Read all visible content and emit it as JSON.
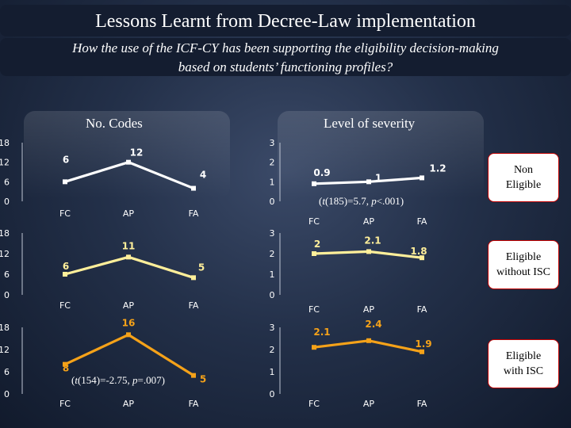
{
  "header": {
    "title": "Lessons Learnt from Decree-Law implementation",
    "subtitle_line1": "How the use of the ICF-CY has been supporting the eligibility decision-making",
    "subtitle_line2": "based on students’ functioning profiles?"
  },
  "left_heading": "No. Codes",
  "right_heading": "Level of severity",
  "row_labels": [
    {
      "line1": "Non",
      "line2": "Eligible"
    },
    {
      "line1": "Eligible",
      "line2": "without ISC"
    },
    {
      "line1": "Eligible",
      "line2": "with ISC"
    }
  ],
  "colors": {
    "row1": "#ffffff",
    "row2": "#ffef9a",
    "row3": "#f5a219"
  },
  "chart_data": [
    {
      "type": "line",
      "panel": "No. Codes",
      "group": "Non Eligible",
      "categories": [
        "FC",
        "AP",
        "FA"
      ],
      "values": [
        6,
        12,
        4
      ],
      "labels": [
        "6",
        "12",
        "4"
      ],
      "ylim": [
        0,
        18
      ],
      "yticks": [
        "0",
        "6",
        "12",
        "18"
      ],
      "stat": ""
    },
    {
      "type": "line",
      "panel": "No. Codes",
      "group": "Eligible without ISC",
      "categories": [
        "FC",
        "AP",
        "FA"
      ],
      "values": [
        6,
        11,
        5
      ],
      "labels": [
        "6",
        "11",
        "5"
      ],
      "ylim": [
        0,
        18
      ],
      "yticks": [
        "0",
        "6",
        "12",
        "18"
      ],
      "stat": ""
    },
    {
      "type": "line",
      "panel": "No. Codes",
      "group": "Eligible with ISC",
      "categories": [
        "FC",
        "AP",
        "FA"
      ],
      "values": [
        8,
        16,
        5
      ],
      "labels": [
        "8",
        "16",
        "5"
      ],
      "ylim": [
        0,
        18
      ],
      "yticks": [
        "0",
        "6",
        "12",
        "18"
      ],
      "stat": "(t(154)=-2.75, p=.007)"
    },
    {
      "type": "line",
      "panel": "Level of severity",
      "group": "Non Eligible",
      "categories": [
        "FC",
        "AP",
        "FA"
      ],
      "values": [
        0.9,
        1.0,
        1.2
      ],
      "labels": [
        "0.9",
        "1",
        "1.2"
      ],
      "ylim": [
        0,
        3
      ],
      "yticks": [
        "0",
        "1",
        "2",
        "3"
      ],
      "stat": "(t(185)=5.7, p<.001)"
    },
    {
      "type": "line",
      "panel": "Level of severity",
      "group": "Eligible without ISC",
      "categories": [
        "FC",
        "AP",
        "FA"
      ],
      "values": [
        2.0,
        2.1,
        1.8
      ],
      "labels": [
        "2",
        "2.1",
        "1.8"
      ],
      "ylim": [
        0,
        3
      ],
      "yticks": [
        "0",
        "1",
        "2",
        "3"
      ],
      "stat": ""
    },
    {
      "type": "line",
      "panel": "Level of severity",
      "group": "Eligible with ISC",
      "categories": [
        "FC",
        "AP",
        "FA"
      ],
      "values": [
        2.1,
        2.4,
        1.9
      ],
      "labels": [
        "2.1",
        "2.4",
        "1.9"
      ],
      "ylim": [
        0,
        3
      ],
      "yticks": [
        "0",
        "1",
        "2",
        "3"
      ],
      "stat": ""
    }
  ]
}
